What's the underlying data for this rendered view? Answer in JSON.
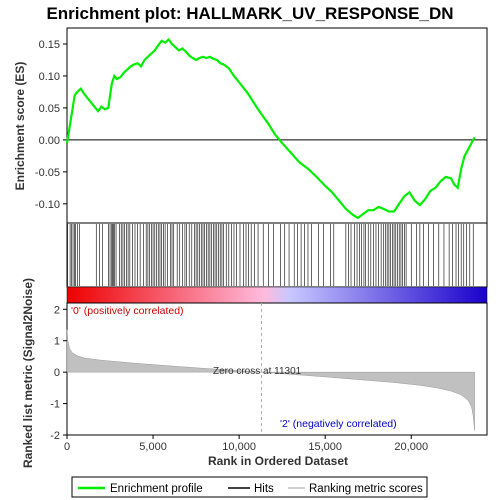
{
  "colors": {
    "es_line": "#00ee00",
    "hits": "#000000",
    "metric_fill": "#c0c0c0",
    "zero_line": "#000000",
    "dashed": "#b0b0b0",
    "positive_text": "#cc0000",
    "negative_text": "#0000cc",
    "gradient_start": "#ee0000",
    "gradient_pink": "#ffbbdd",
    "gradient_light_blue": "#c8c8ff",
    "gradient_end": "#1a00cc"
  },
  "chart_data": {
    "type": "line",
    "title": "Enrichment plot: HALLMARK_UV_RESPONSE_DN",
    "es_panel": {
      "ylabel": "Enrichment score (ES)",
      "ylim": [
        -0.13,
        0.175
      ],
      "yticks": [
        0.15,
        0.1,
        0.05,
        0.0,
        -0.05,
        -0.1
      ],
      "ytick_labels": [
        "0.15",
        "0.10",
        "0.05",
        "0.00",
        "-0.05",
        "-0.10"
      ],
      "series": [
        {
          "name": "Enrichment profile",
          "x": [
            0,
            150,
            300,
            450,
            600,
            800,
            1000,
            1200,
            1500,
            1800,
            2000,
            2200,
            2400,
            2600,
            2750,
            2900,
            3100,
            3300,
            3500,
            3700,
            3900,
            4100,
            4300,
            4500,
            4700,
            4900,
            5100,
            5300,
            5500,
            5700,
            5900,
            6100,
            6300,
            6500,
            6700,
            6900,
            7100,
            7300,
            7500,
            7700,
            7900,
            8100,
            8300,
            8500,
            8700,
            8900,
            9100,
            9400,
            9700,
            10000,
            10500,
            11000,
            11301,
            11700,
            12100,
            12500,
            13000,
            13500,
            14000,
            14500,
            15000,
            15400,
            15800,
            16200,
            16600,
            16900,
            17200,
            17500,
            17800,
            18100,
            18400,
            18700,
            19000,
            19300,
            19600,
            19900,
            20200,
            20500,
            20800,
            21100,
            21400,
            21700,
            22000,
            22300,
            22500,
            22700,
            22900,
            23100,
            23300,
            23500,
            23680
          ],
          "y": [
            -0.005,
            0.02,
            0.045,
            0.07,
            0.075,
            0.08,
            0.072,
            0.065,
            0.055,
            0.045,
            0.052,
            0.048,
            0.05,
            0.088,
            0.1,
            0.095,
            0.098,
            0.105,
            0.11,
            0.115,
            0.118,
            0.12,
            0.115,
            0.125,
            0.13,
            0.135,
            0.14,
            0.148,
            0.155,
            0.152,
            0.157,
            0.15,
            0.145,
            0.14,
            0.143,
            0.138,
            0.132,
            0.128,
            0.125,
            0.128,
            0.13,
            0.128,
            0.13,
            0.127,
            0.125,
            0.12,
            0.118,
            0.112,
            0.1,
            0.09,
            0.073,
            0.052,
            0.04,
            0.025,
            0.008,
            -0.005,
            -0.02,
            -0.035,
            -0.045,
            -0.058,
            -0.072,
            -0.082,
            -0.095,
            -0.108,
            -0.117,
            -0.122,
            -0.116,
            -0.11,
            -0.11,
            -0.105,
            -0.108,
            -0.112,
            -0.112,
            -0.1,
            -0.088,
            -0.082,
            -0.095,
            -0.102,
            -0.093,
            -0.08,
            -0.075,
            -0.065,
            -0.058,
            -0.06,
            -0.07,
            -0.075,
            -0.045,
            -0.025,
            -0.015,
            -0.005,
            0.004
          ]
        }
      ]
    },
    "hits": [
      30,
      180,
      270,
      350,
      430,
      500,
      620,
      720,
      1700,
      1900,
      2050,
      2400,
      2500,
      2600,
      2650,
      2700,
      2760,
      2850,
      3050,
      3150,
      3250,
      3350,
      3450,
      3550,
      3650,
      3800,
      3950,
      4100,
      4250,
      4450,
      4600,
      4700,
      4800,
      4900,
      5000,
      5100,
      5200,
      5300,
      5400,
      5500,
      5600,
      5700,
      5850,
      6000,
      6100,
      6200,
      6400,
      6550,
      6700,
      6850,
      6950,
      7100,
      7250,
      7400,
      7500,
      7600,
      7700,
      7800,
      7900,
      8000,
      8100,
      8200,
      8300,
      8400,
      8500,
      8600,
      8700,
      8800,
      8900,
      9000,
      9100,
      9250,
      9400,
      9550,
      9700,
      9850,
      10050,
      10250,
      10400,
      10550,
      10700,
      10900,
      11100,
      11400,
      11700,
      12000,
      12400,
      12650,
      12900,
      13200,
      13400,
      13600,
      13800,
      14000,
      14200,
      14600,
      14900,
      15300,
      15500,
      16200,
      16350,
      16500,
      16700,
      16850,
      17000,
      17100,
      17250,
      17350,
      17500,
      17650,
      17800,
      17950,
      18100,
      18250,
      18400,
      18500,
      18600,
      18700,
      18800,
      18900,
      19000,
      19100,
      19200,
      19300,
      19400,
      19500,
      19600,
      19700,
      20000,
      20300,
      20500,
      20700,
      21000,
      21300,
      21600,
      21900,
      22200,
      22400,
      22600,
      22750,
      22900,
      23050,
      23200,
      23400,
      23600
    ],
    "metric_panel": {
      "ylabel": "Ranked list metric (Signal2Noise)",
      "xlabel": "Rank in Ordered Dataset",
      "ylim": [
        -2,
        2.2
      ],
      "yticks": [
        2,
        1,
        0,
        -1,
        -2
      ],
      "ytick_labels": [
        "2",
        "1",
        "0",
        "-1",
        "-2"
      ],
      "xticks": [
        0,
        5000,
        10000,
        15000,
        20000
      ],
      "xtick_labels": [
        "0",
        "5,000",
        "10,000",
        "15,000",
        "20,000"
      ],
      "xlim": [
        0,
        24400
      ],
      "metric_profile": {
        "x": [
          0,
          50,
          150,
          300,
          600,
          1000,
          2000,
          4000,
          6000,
          8000,
          10000,
          11301,
          13000,
          15000,
          17000,
          19000,
          20500,
          21500,
          22300,
          22900,
          23300,
          23500,
          23600,
          23680
        ],
        "y": [
          1.35,
          1.0,
          0.75,
          0.62,
          0.52,
          0.45,
          0.38,
          0.28,
          0.2,
          0.12,
          0.05,
          0.0,
          -0.07,
          -0.15,
          -0.24,
          -0.33,
          -0.42,
          -0.5,
          -0.6,
          -0.72,
          -0.9,
          -1.1,
          -1.4,
          -1.85
        ]
      }
    },
    "zero_cross": 11301,
    "zero_cross_label": "Zero cross at 11301",
    "positive_label": "'0' (positively correlated)",
    "negative_label": "'2' (negatively correlated)",
    "n_genes": 23680,
    "legend": {
      "placement": "bottom",
      "items": [
        "Enrichment profile",
        "Hits",
        "Ranking metric scores"
      ]
    }
  }
}
